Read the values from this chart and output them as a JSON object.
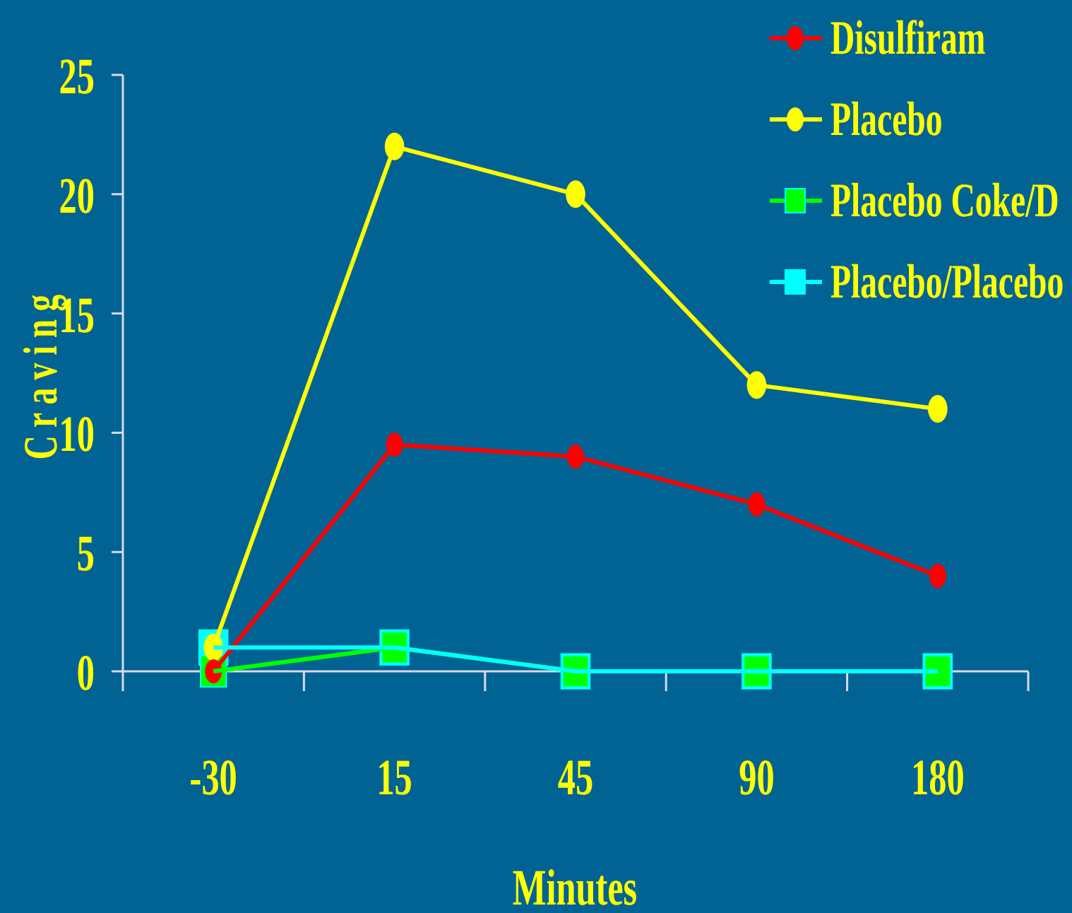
{
  "chart_data": {
    "type": "line",
    "xlabel": "Minutes",
    "ylabel": "Craving",
    "categories": [
      "-30",
      "15",
      "45",
      "90",
      "180"
    ],
    "series": [
      {
        "name": "Disulfiram",
        "color": "#ff0000",
        "marker": "circle",
        "values": [
          0,
          9.5,
          9,
          7,
          4
        ]
      },
      {
        "name": "Placebo",
        "color": "#ffff00",
        "marker": "circle",
        "values": [
          1,
          22,
          20,
          12,
          11
        ]
      },
      {
        "name": "Placebo Coke/D",
        "color": "#00ff00",
        "marker": "square",
        "values": [
          0,
          1,
          0,
          0,
          0
        ]
      },
      {
        "name": "Placebo/Placebo",
        "color": "#00ffff",
        "marker": "square",
        "values": [
          1,
          1,
          0,
          0,
          0
        ]
      }
    ],
    "ylim": [
      0,
      25
    ],
    "yticks": [
      0,
      5,
      10,
      15,
      20,
      25
    ],
    "grid": false,
    "legend": "top right"
  }
}
